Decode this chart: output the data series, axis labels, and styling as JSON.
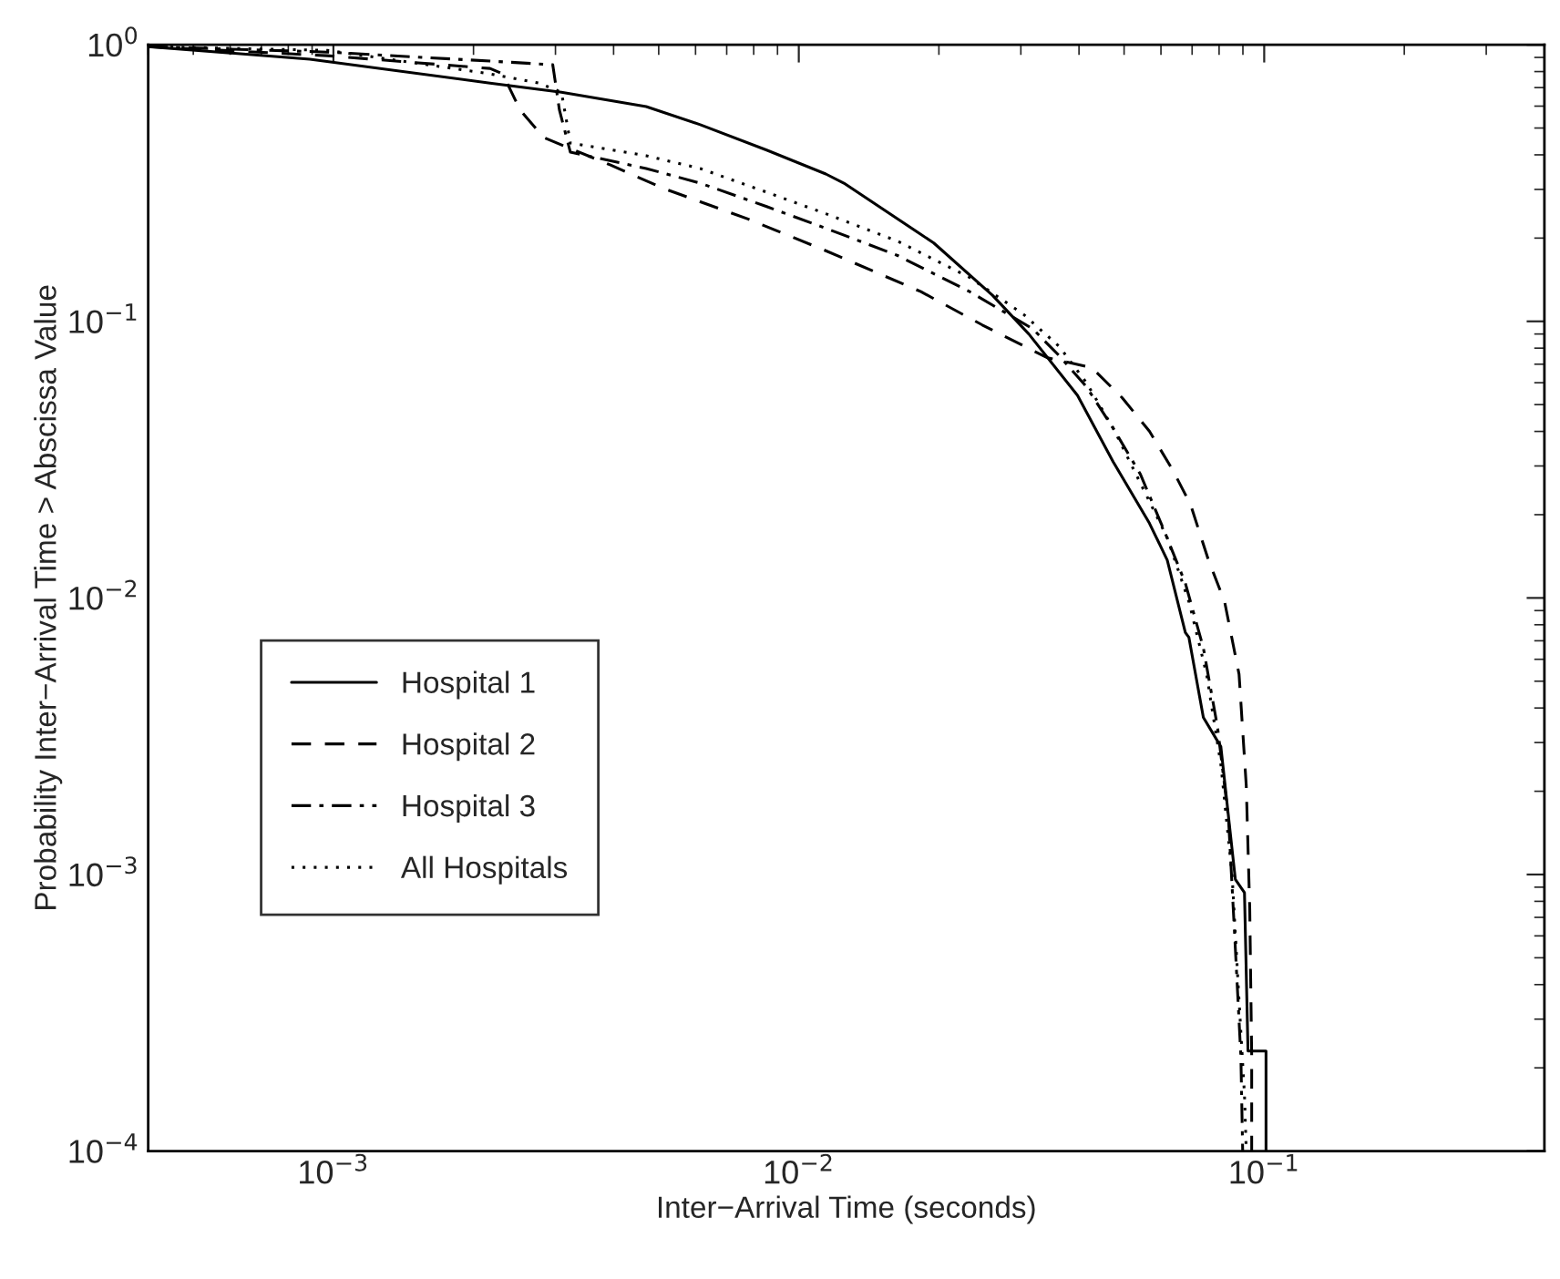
{
  "chart_data": {
    "type": "line",
    "xlabel": "Inter−Arrival Time (seconds)",
    "ylabel": "Probability Inter−Arrival Time > Abscissa Value",
    "log": "xy",
    "grid": false,
    "legend": "bottom left",
    "xlim": [
      0.0004,
      0.4
    ],
    "ylim": [
      0.0001,
      1
    ],
    "xticks": [
      {
        "value": 0.001,
        "label": "10$^{−3}$"
      },
      {
        "value": 0.01,
        "label": "10$^{−2}$"
      },
      {
        "value": 0.1,
        "label": "10$^{−1}$"
      }
    ],
    "yticks": [
      {
        "value": 0.0001,
        "label": "10$^{−4}$"
      },
      {
        "value": 0.001,
        "label": "10$^{−3}$"
      },
      {
        "value": 0.01,
        "label": "10$^{−2}$"
      },
      {
        "value": 0.1,
        "label": "10$^{−1}$"
      },
      {
        "value": 1,
        "label": "10$^{0}$"
      }
    ],
    "series": [
      {
        "name": "Hospital 1",
        "color": "#000000",
        "line_style": "solid",
        "x": [
          0.0004,
          0.00089,
          0.00217,
          0.00309,
          0.0047,
          0.00614,
          0.00853,
          0.01143,
          0.0125,
          0.0195,
          0.0261,
          0.0312,
          0.0397,
          0.0474,
          0.0567,
          0.0619,
          0.0677,
          0.0689,
          0.074,
          0.0807,
          0.0867,
          0.0907,
          0.0923,
          0.1009,
          0.1009
        ],
        "values": [
          0.985,
          0.886,
          0.727,
          0.674,
          0.598,
          0.514,
          0.416,
          0.341,
          0.316,
          0.192,
          0.124,
          0.09,
          0.054,
          0.031,
          0.0186,
          0.0137,
          0.0075,
          0.0072,
          0.0037,
          0.0029,
          0.00096,
          0.00086,
          0.00023,
          0.00023,
          0.0001
        ]
      },
      {
        "name": "Hospital 2",
        "color": "#000000",
        "line_style": "dashed",
        "x": [
          0.0004,
          0.00097,
          0.00217,
          0.00231,
          0.00252,
          0.00283,
          0.00393,
          0.00513,
          0.0078,
          0.01143,
          0.0183,
          0.0248,
          0.0341,
          0.0426,
          0.0495,
          0.0567,
          0.0636,
          0.0695,
          0.0759,
          0.0822,
          0.0883,
          0.0915,
          0.0931,
          0.094,
          0.094
        ],
        "values": [
          0.985,
          0.913,
          0.821,
          0.785,
          0.58,
          0.462,
          0.368,
          0.302,
          0.234,
          0.18,
          0.128,
          0.097,
          0.074,
          0.068,
          0.053,
          0.04,
          0.029,
          0.0217,
          0.0137,
          0.0097,
          0.0053,
          0.0021,
          0.00075,
          0.00022,
          0.0001
        ]
      },
      {
        "name": "Hospital 3",
        "color": "#000000",
        "line_style": "dashdot",
        "x": [
          0.0004,
          0.00097,
          0.00217,
          0.00296,
          0.00306,
          0.00323,
          0.0047,
          0.00614,
          0.00853,
          0.01143,
          0.0163,
          0.0233,
          0.0318,
          0.0363,
          0.0415,
          0.0474,
          0.0542,
          0.0608,
          0.0677,
          0.074,
          0.0794,
          0.0838,
          0.0867,
          0.0891,
          0.0899
        ],
        "values": [
          0.985,
          0.941,
          0.873,
          0.847,
          0.58,
          0.409,
          0.357,
          0.316,
          0.26,
          0.217,
          0.173,
          0.128,
          0.094,
          0.075,
          0.058,
          0.041,
          0.028,
          0.0177,
          0.0113,
          0.0066,
          0.0034,
          0.0016,
          0.00054,
          0.00022,
          0.0001
        ]
      },
      {
        "name": "All Hospitals",
        "color": "#000000",
        "line_style": "dotted",
        "x": [
          0.0004,
          0.00097,
          0.00217,
          0.00276,
          0.00309,
          0.00323,
          0.0047,
          0.00614,
          0.00853,
          0.01143,
          0.0163,
          0.0233,
          0.0304,
          0.0363,
          0.0415,
          0.0474,
          0.0542,
          0.0619,
          0.0689,
          0.0752,
          0.0807,
          0.0853,
          0.0883,
          0.0907,
          0.0915
        ],
        "values": [
          0.985,
          0.955,
          0.785,
          0.727,
          0.674,
          0.441,
          0.397,
          0.357,
          0.293,
          0.245,
          0.195,
          0.144,
          0.106,
          0.081,
          0.06,
          0.041,
          0.026,
          0.0165,
          0.0097,
          0.0053,
          0.0025,
          0.001,
          0.00035,
          0.00016,
          0.0001
        ]
      }
    ]
  }
}
